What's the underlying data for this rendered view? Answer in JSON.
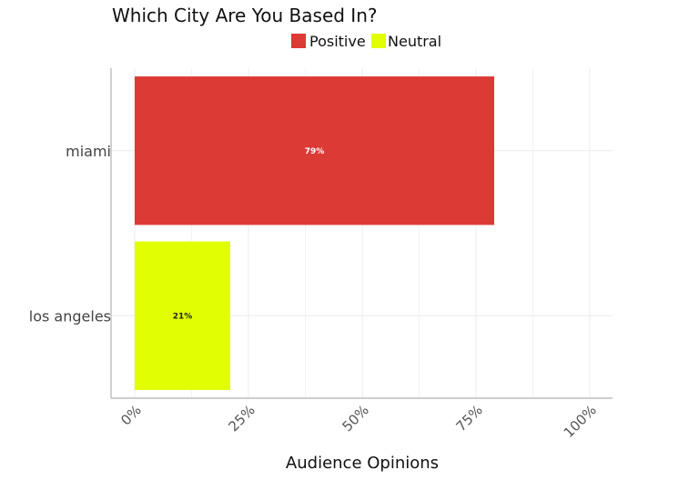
{
  "chart_data": {
    "type": "bar",
    "orientation": "horizontal",
    "title": "Which City Are You Based In?",
    "xlabel": "Audience Opinions",
    "ylabel": "",
    "categories": [
      "miami",
      "los angeles"
    ],
    "values": [
      79,
      21
    ],
    "data_labels": [
      "79%",
      "21%"
    ],
    "series": [
      {
        "name": "Positive",
        "color": "#dc3a35"
      },
      {
        "name": "Neutral",
        "color": "#e1ff00"
      }
    ],
    "bar_series": [
      0,
      1
    ],
    "data_label_colors": [
      "#ffffff",
      "#222222"
    ],
    "xlim": [
      0,
      100
    ],
    "xticks": [
      0,
      25,
      50,
      75,
      100
    ],
    "xtick_labels": [
      "0%",
      "25%",
      "50%",
      "75%",
      "100%"
    ],
    "grid": true,
    "legend_position": "top"
  }
}
